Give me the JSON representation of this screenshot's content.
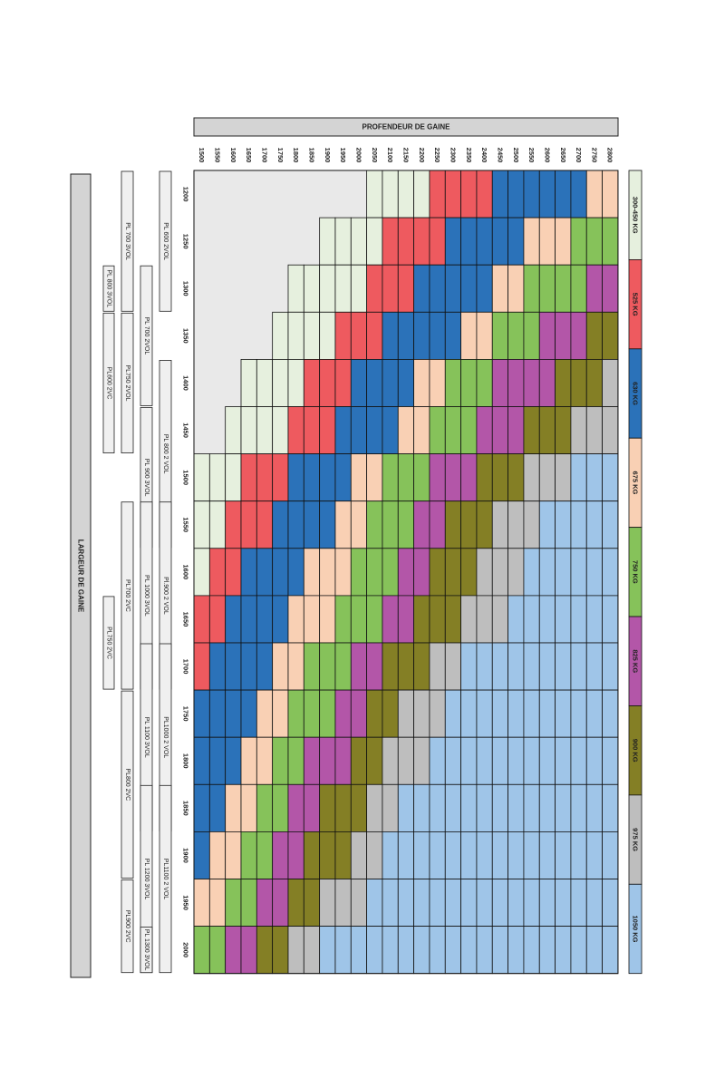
{
  "chart_data": {
    "type": "heatmap",
    "title_depth": "PROFENDEUR DE GAINE",
    "title_width": "LARGEUR DE GAINE",
    "depth_ticks": [
      "1500",
      "1550",
      "1600",
      "1650",
      "1700",
      "1750",
      "1800",
      "1850",
      "1900",
      "1950",
      "2000",
      "2050",
      "2100",
      "2150",
      "2200",
      "2250",
      "2300",
      "2350",
      "2400",
      "2450",
      "2500",
      "2550",
      "2600",
      "2650",
      "2700",
      "2750",
      "2800"
    ],
    "width_ticks": [
      "1200",
      "1250",
      "1300",
      "1350",
      "1400",
      "1450",
      "1500",
      "1550",
      "1600",
      "1650",
      "1700",
      "1750",
      "1800",
      "1850",
      "1900",
      "1950",
      "2000"
    ],
    "legend": [
      {
        "label": "300-450 KG",
        "color": "#e6f0de"
      },
      {
        "label": "525 KG",
        "color": "#ee5a5f"
      },
      {
        "label": "630 KG",
        "color": "#2b72b9"
      },
      {
        "label": "675 KG",
        "color": "#f9d0b4"
      },
      {
        "label": "750 KG",
        "color": "#86c25a"
      },
      {
        "label": "825 KG",
        "color": "#b356a8"
      },
      {
        "label": "900 KG",
        "color": "#847f25"
      },
      {
        "label": "975 KG",
        "color": "#bebebe"
      },
      {
        "label": "1050 KG",
        "color": "#9fc5e8"
      }
    ],
    "empty_color": "#e9e9e9",
    "matrix_note": "rows = width ticks (1200..2000), columns = depth ticks (1500..2800); values = legend index, -1 = no configuration",
    "matrix": [
      [
        -1,
        -1,
        -1,
        -1,
        -1,
        -1,
        -1,
        -1,
        -1,
        -1,
        -1,
        0,
        0,
        0,
        0,
        1,
        1,
        1,
        1,
        2,
        2,
        2,
        2,
        2,
        2,
        3,
        3
      ],
      [
        -1,
        -1,
        -1,
        -1,
        -1,
        -1,
        -1,
        -1,
        0,
        0,
        0,
        0,
        1,
        1,
        1,
        1,
        2,
        2,
        2,
        2,
        2,
        3,
        3,
        3,
        4,
        4,
        4
      ],
      [
        -1,
        -1,
        -1,
        -1,
        -1,
        -1,
        0,
        0,
        0,
        0,
        0,
        1,
        1,
        1,
        2,
        2,
        2,
        2,
        2,
        3,
        3,
        4,
        4,
        4,
        4,
        5,
        5
      ],
      [
        -1,
        -1,
        -1,
        -1,
        -1,
        0,
        0,
        0,
        0,
        1,
        1,
        1,
        2,
        2,
        2,
        2,
        2,
        3,
        3,
        4,
        4,
        4,
        5,
        5,
        5,
        6,
        6
      ],
      [
        -1,
        -1,
        -1,
        0,
        0,
        0,
        0,
        1,
        1,
        1,
        2,
        2,
        2,
        2,
        3,
        3,
        4,
        4,
        4,
        5,
        5,
        5,
        5,
        6,
        6,
        6,
        7
      ],
      [
        -1,
        -1,
        0,
        0,
        0,
        0,
        1,
        1,
        1,
        2,
        2,
        2,
        2,
        3,
        3,
        4,
        4,
        4,
        5,
        5,
        5,
        6,
        6,
        6,
        7,
        7,
        7
      ],
      [
        0,
        0,
        0,
        1,
        1,
        1,
        2,
        2,
        2,
        2,
        3,
        3,
        4,
        4,
        4,
        5,
        5,
        5,
        6,
        6,
        6,
        7,
        7,
        7,
        8,
        8,
        8
      ],
      [
        0,
        0,
        1,
        1,
        1,
        2,
        2,
        2,
        2,
        3,
        3,
        4,
        4,
        4,
        5,
        5,
        6,
        6,
        6,
        7,
        7,
        7,
        8,
        8,
        8,
        8,
        8
      ],
      [
        0,
        1,
        1,
        2,
        2,
        2,
        2,
        3,
        3,
        3,
        4,
        4,
        4,
        5,
        5,
        6,
        6,
        6,
        7,
        7,
        7,
        8,
        8,
        8,
        8,
        8,
        8
      ],
      [
        1,
        1,
        2,
        2,
        2,
        2,
        3,
        3,
        3,
        4,
        4,
        4,
        5,
        5,
        6,
        6,
        6,
        7,
        7,
        7,
        8,
        8,
        8,
        8,
        8,
        8,
        8
      ],
      [
        1,
        2,
        2,
        2,
        2,
        3,
        3,
        4,
        4,
        4,
        5,
        5,
        6,
        6,
        6,
        7,
        7,
        8,
        8,
        8,
        8,
        8,
        8,
        8,
        8,
        8,
        8
      ],
      [
        2,
        2,
        2,
        2,
        3,
        3,
        4,
        4,
        4,
        5,
        5,
        6,
        6,
        7,
        7,
        7,
        8,
        8,
        8,
        8,
        8,
        8,
        8,
        8,
        8,
        8,
        8
      ],
      [
        2,
        2,
        2,
        3,
        3,
        4,
        4,
        5,
        5,
        5,
        6,
        6,
        7,
        7,
        7,
        8,
        8,
        8,
        8,
        8,
        8,
        8,
        8,
        8,
        8,
        8,
        8
      ],
      [
        2,
        2,
        3,
        3,
        4,
        4,
        5,
        5,
        6,
        6,
        6,
        7,
        7,
        8,
        8,
        8,
        8,
        8,
        8,
        8,
        8,
        8,
        8,
        8,
        8,
        8,
        8
      ],
      [
        2,
        3,
        3,
        4,
        4,
        5,
        5,
        6,
        6,
        6,
        7,
        7,
        8,
        8,
        8,
        8,
        8,
        8,
        8,
        8,
        8,
        8,
        8,
        8,
        8,
        8,
        8
      ],
      [
        3,
        3,
        4,
        4,
        5,
        5,
        6,
        6,
        7,
        7,
        7,
        8,
        8,
        8,
        8,
        8,
        8,
        8,
        8,
        8,
        8,
        8,
        8,
        8,
        8,
        8,
        8
      ],
      [
        4,
        4,
        5,
        5,
        6,
        6,
        7,
        7,
        8,
        8,
        8,
        8,
        8,
        8,
        8,
        8,
        8,
        8,
        8,
        8,
        8,
        8,
        8,
        8,
        8,
        8,
        8
      ]
    ],
    "range_bars": [
      {
        "label": "PL 600 2VOL",
        "from": "1200",
        "to": "1300",
        "lane": 0
      },
      {
        "label": "PL 800 2 VOL",
        "from": "1400",
        "to": "1550",
        "lane": 0
      },
      {
        "label": "Pl.900 2 VOL",
        "from": "1550",
        "to": "1700",
        "lane": 0
      },
      {
        "label": "PL1000 2 VOL",
        "from": "1700",
        "to": "1850",
        "lane": 0
      },
      {
        "label": "PL1100 2 VOL",
        "from": "1850",
        "to": "2000",
        "lane": 0
      },
      {
        "label": "PL 700 2VOL",
        "from": "1300",
        "to": "1400",
        "lane": 1
      },
      {
        "label": "PL 900 3VOL",
        "from": "1450",
        "to": "1550",
        "lane": 1
      },
      {
        "label": "PL 1000 3VOL",
        "from": "1550",
        "to": "1700",
        "lane": 1
      },
      {
        "label": "PL 1100 3VOL",
        "from": "1700",
        "to": "1850",
        "lane": 1
      },
      {
        "label": "PL 1200 3VOL",
        "from": "1850",
        "to": "2000",
        "lane": 1
      },
      {
        "label": "PL 1300 3VOL",
        "from": "2000",
        "to": "2000",
        "lane": 1
      },
      {
        "label": "PL 700 3VOL",
        "from": "1200",
        "to": "1300",
        "lane": 2
      },
      {
        "label": "PL750 2VOL",
        "from": "1350",
        "to": "1450",
        "lane": 2
      },
      {
        "label": "PL700 2VC",
        "from": "1550",
        "to": "1700",
        "lane": 2
      },
      {
        "label": "PL800 2VC",
        "from": "1750",
        "to": "1900",
        "lane": 2
      },
      {
        "label": "PL900 2VC",
        "from": "1950",
        "to": "2000",
        "lane": 2
      },
      {
        "label": "PL 800 3VOL",
        "from": "1300",
        "to": "1300",
        "lane": 3
      },
      {
        "label": "PL600 2VC",
        "from": "1350",
        "to": "1450",
        "lane": 3
      },
      {
        "label": "PL750 2VC",
        "from": "1650",
        "to": "1700",
        "lane": 3
      }
    ]
  }
}
